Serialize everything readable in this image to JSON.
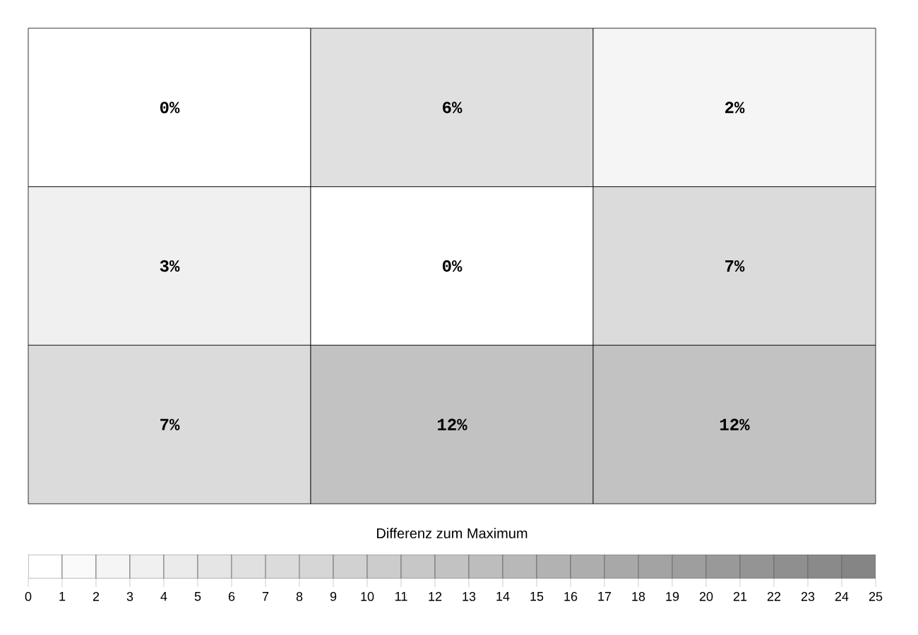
{
  "chart_data": {
    "type": "heatmap",
    "clabel": "Differenz zum Maximum",
    "categories": [
      null,
      null,
      null
    ],
    "y_categories": [
      null,
      null,
      null
    ],
    "cells": [
      [
        0,
        6,
        2
      ],
      [
        3,
        0,
        7
      ],
      [
        7,
        12,
        12
      ]
    ],
    "cell_labels": [
      [
        "0%",
        "6%",
        "2%"
      ],
      [
        "3%",
        "0%",
        "7%"
      ],
      [
        "7%",
        "12%",
        "12%"
      ]
    ],
    "clim": [
      0,
      25
    ],
    "cticks": [
      0,
      1,
      2,
      3,
      4,
      5,
      6,
      7,
      8,
      9,
      10,
      11,
      12,
      13,
      14,
      15,
      16,
      17,
      18,
      19,
      20,
      21,
      22,
      23,
      24,
      25
    ]
  }
}
